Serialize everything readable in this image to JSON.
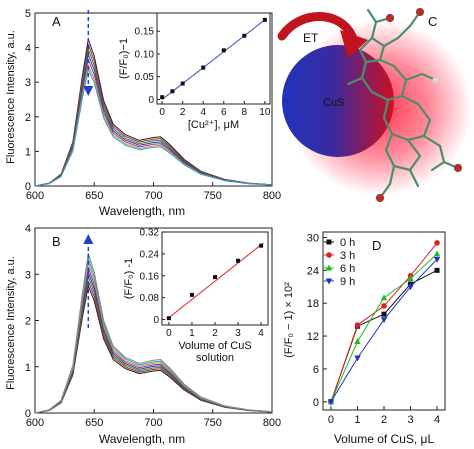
{
  "colors": {
    "sphere_left": "#2233bb",
    "sphere_right": "#cc1122",
    "glow": "#ff2d4a",
    "arrow_blue": "#1f3fd0",
    "et_arrow": "#c0141e",
    "molecule": "#4a8f6a",
    "fit_line_A": "#3355bb",
    "fit_line_B": "#dd2222"
  },
  "chart_data": [
    {
      "id": "A",
      "type": "line",
      "panel_label": "A",
      "xlabel": "Wavelength, nm",
      "ylabel": "Fluorescence Intensity, a.u.",
      "xlim": [
        600,
        800
      ],
      "ylim": [
        0,
        5
      ],
      "xticks": [
        600,
        650,
        700,
        750,
        800
      ],
      "yticks": [
        0,
        1,
        2,
        3,
        4,
        5
      ],
      "x": [
        600,
        612,
        622,
        632,
        640,
        645,
        650,
        658,
        666,
        676,
        688,
        700,
        706,
        714,
        726,
        740,
        760,
        780,
        800
      ],
      "profile": [
        0.0,
        0.02,
        0.08,
        0.3,
        0.75,
        1.0,
        0.88,
        0.58,
        0.42,
        0.35,
        0.31,
        0.33,
        0.335,
        0.28,
        0.18,
        0.1,
        0.045,
        0.02,
        0.008
      ],
      "peaks": [
        4.25,
        4.1,
        3.95,
        3.8,
        3.65,
        3.5,
        3.38
      ],
      "colors": [
        "#222222",
        "#b02a2a",
        "#2a8a2a",
        "#2a3ab0",
        "#aa2aaa",
        "#c9a01a",
        "#20a8c8"
      ],
      "inset": {
        "type": "scatter",
        "xlabel": "[Cu²⁺], μM",
        "ylabel": "(F/F₀)−1",
        "xlim": [
          -0.5,
          10.5
        ],
        "ylim": [
          -0.01,
          0.19
        ],
        "xticks": [
          0,
          2,
          4,
          6,
          8,
          10
        ],
        "yticks": [
          0,
          0.05,
          0.1,
          0.15
        ],
        "ytick_labels": [
          "0",
          "0.05",
          "0.10",
          "0.15"
        ],
        "x": [
          0,
          1,
          2,
          4,
          6,
          8,
          10
        ],
        "y": [
          0.005,
          0.018,
          0.035,
          0.07,
          0.108,
          0.14,
          0.175
        ],
        "fit": [
          [
            0,
            0.0
          ],
          [
            10,
            0.175
          ]
        ]
      }
    },
    {
      "id": "B",
      "type": "line",
      "panel_label": "B",
      "xlabel": "Wavelength, nm",
      "ylabel": "Fluorescence Intensity, a.u.",
      "xlim": [
        600,
        800
      ],
      "ylim": [
        0,
        4
      ],
      "xticks": [
        600,
        650,
        700,
        750,
        800
      ],
      "yticks": [
        0,
        1,
        2,
        3,
        4
      ],
      "x": [
        600,
        612,
        622,
        632,
        640,
        645,
        650,
        658,
        666,
        676,
        688,
        700,
        706,
        714,
        726,
        740,
        760,
        780,
        800
      ],
      "profile": [
        0.0,
        0.02,
        0.08,
        0.3,
        0.75,
        1.0,
        0.88,
        0.58,
        0.42,
        0.35,
        0.31,
        0.33,
        0.335,
        0.28,
        0.18,
        0.1,
        0.045,
        0.02,
        0.008
      ],
      "peaks": [
        2.75,
        2.85,
        2.95,
        3.05,
        3.15,
        3.25,
        3.35,
        3.45
      ],
      "colors": [
        "#222222",
        "#b02a2a",
        "#2a8a2a",
        "#2a3ab0",
        "#aa2aaa",
        "#c9a01a",
        "#20a8c8",
        "#888888"
      ],
      "inset": {
        "type": "scatter",
        "xlabel": "Volume of CuS",
        "xlabel2": "solution",
        "ylabel": "(F/F₀) -1",
        "xlim": [
          -0.3,
          4.3
        ],
        "ylim": [
          -0.02,
          0.32
        ],
        "xticks": [
          0,
          1,
          2,
          3,
          4
        ],
        "yticks": [
          0,
          0.08,
          0.16,
          0.24,
          0.32
        ],
        "ytick_labels": [
          "0",
          "0.08",
          "0.16",
          "0.24",
          "0.32"
        ],
        "x": [
          0,
          1,
          2,
          3,
          4
        ],
        "y": [
          0.005,
          0.09,
          0.155,
          0.215,
          0.27
        ],
        "fit": [
          [
            -0.1,
            0.0
          ],
          [
            4.1,
            0.28
          ]
        ]
      }
    },
    {
      "id": "D",
      "type": "line",
      "panel_label": "D",
      "xlabel": "Volume of CuS, μL",
      "ylabel": "(F/F₀ − 1) × 10²",
      "xlim": [
        -0.3,
        4.3
      ],
      "ylim": [
        -1.5,
        31
      ],
      "xticks": [
        0,
        1,
        2,
        3,
        4
      ],
      "yticks": [
        0,
        6,
        12,
        18,
        24,
        30
      ],
      "categories": [
        0,
        1,
        2,
        3,
        4
      ],
      "series": [
        {
          "name": "0 h",
          "color": "#111111",
          "marker": "square",
          "values": [
            0,
            13.8,
            16.0,
            21.5,
            24.0
          ]
        },
        {
          "name": "3 h",
          "color": "#dd2222",
          "marker": "circle",
          "values": [
            0,
            14.0,
            17.5,
            23.0,
            29.0
          ]
        },
        {
          "name": "6 h",
          "color": "#22bb22",
          "marker": "triangle-up",
          "values": [
            0,
            11.0,
            19.0,
            22.5,
            27.0
          ]
        },
        {
          "name": "9 h",
          "color": "#2233cc",
          "marker": "triangle-down",
          "values": [
            0,
            8.0,
            15.0,
            21.0,
            26.0
          ]
        }
      ]
    }
  ],
  "schematic": {
    "panel_label": "C",
    "arrow_label": "ET",
    "sphere_label": "CuS"
  }
}
